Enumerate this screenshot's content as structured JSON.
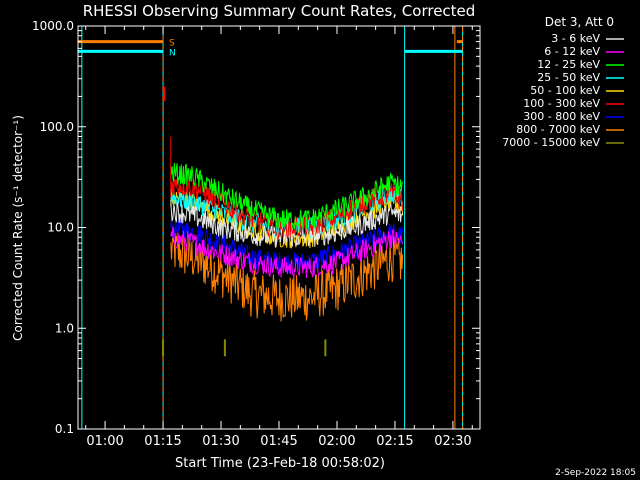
{
  "chart_data": {
    "type": "line",
    "title": "RHESSI Observing Summary Count Rates, Corrected",
    "xlabel": "Start Time (23-Feb-18 00:58:02)",
    "ylabel": "Corrected Count Rate (s⁻¹ detector⁻¹)",
    "x_unit": "minutes since 00:58:02",
    "xlim": [
      -5.0,
      99.0
    ],
    "ylim": [
      0.1,
      1000.0
    ],
    "yscale": "log",
    "grid": false,
    "x_ticks": [
      {
        "label": "01:00",
        "x": 2.0
      },
      {
        "label": "01:15",
        "x": 17.0
      },
      {
        "label": "01:30",
        "x": 32.0
      },
      {
        "label": "01:45",
        "x": 47.0
      },
      {
        "label": "02:00",
        "x": 62.0
      },
      {
        "label": "02:15",
        "x": 77.0
      },
      {
        "label": "02:30",
        "x": 92.0
      }
    ],
    "y_ticks": [
      {
        "label": "1000.0",
        "y": 1000
      },
      {
        "label": "100.0",
        "y": 100
      },
      {
        "label": "10.0",
        "y": 10
      },
      {
        "label": "1.0",
        "y": 1
      },
      {
        "label": "0.1",
        "y": 0.1
      }
    ],
    "legend_header": "Det 3, Att 0",
    "legend_placement": "outside-right",
    "series": [
      {
        "name": "3 - 6 keV",
        "color": "#e6e6e6",
        "x": [
          19,
          25,
          32,
          40,
          47,
          55,
          62,
          69,
          76,
          79
        ],
        "y": [
          15,
          13,
          10,
          8.5,
          8,
          8,
          9,
          11,
          14,
          13
        ]
      },
      {
        "name": "6 - 12 keV",
        "color": "#ff00ff",
        "x": [
          19,
          25,
          32,
          40,
          47,
          55,
          62,
          69,
          76,
          79
        ],
        "y": [
          8,
          7,
          5.5,
          4.5,
          4,
          4,
          4.5,
          6,
          8,
          7
        ]
      },
      {
        "name": "12 - 25 keV",
        "color": "#00ff00",
        "x": [
          19,
          25,
          32,
          40,
          47,
          55,
          62,
          69,
          76,
          79
        ],
        "y": [
          35,
          32,
          22,
          15,
          12,
          12,
          15,
          20,
          28,
          25
        ]
      },
      {
        "name": "25 - 50 keV",
        "color": "#00ffff",
        "x": [
          19,
          25,
          32,
          40,
          47,
          55,
          62,
          69,
          76,
          79
        ],
        "y": [
          20,
          18,
          14,
          11,
          10,
          10,
          12,
          16,
          22,
          20
        ]
      },
      {
        "name": "50 - 100 keV",
        "color": "#ffd700",
        "x": [
          19,
          25,
          32,
          40,
          47,
          55,
          62,
          69,
          76,
          79
        ],
        "y": [
          20,
          18,
          13,
          9,
          8,
          8,
          10,
          14,
          18,
          16
        ]
      },
      {
        "name": "100 - 300 keV",
        "color": "#ff0000",
        "x": [
          19,
          25,
          32,
          40,
          47,
          55,
          62,
          69,
          76,
          79
        ],
        "y": [
          27,
          25,
          18,
          12,
          10,
          10,
          13,
          18,
          22,
          18
        ]
      },
      {
        "name": "300 - 800 keV",
        "color": "#0000ff",
        "x": [
          19,
          25,
          32,
          40,
          47,
          55,
          62,
          69,
          76,
          79
        ],
        "y": [
          10,
          9,
          7,
          5,
          4.5,
          4.5,
          5.5,
          7,
          9,
          8
        ]
      },
      {
        "name": "800 - 7000 keV",
        "color": "#ff8000",
        "x": [
          19,
          25,
          32,
          40,
          47,
          55,
          62,
          69,
          76,
          79
        ],
        "y": [
          6,
          5,
          3.5,
          2.2,
          2,
          2,
          2.5,
          3.5,
          5,
          4.5
        ]
      },
      {
        "name": "7000 - 15000 keV",
        "color": "#8b8b00",
        "x": [
          17,
          33,
          59
        ],
        "y": [
          0.62,
          0.62,
          0.62
        ]
      }
    ],
    "annotations": [
      {
        "text": "S",
        "x": 17.5,
        "y": 700,
        "color": "#ff8000"
      },
      {
        "text": "N",
        "x": 17.5,
        "y": 560,
        "color": "#00ffff"
      }
    ]
  },
  "footer": {
    "date_stamp": "2-Sep-2022 18:05"
  }
}
